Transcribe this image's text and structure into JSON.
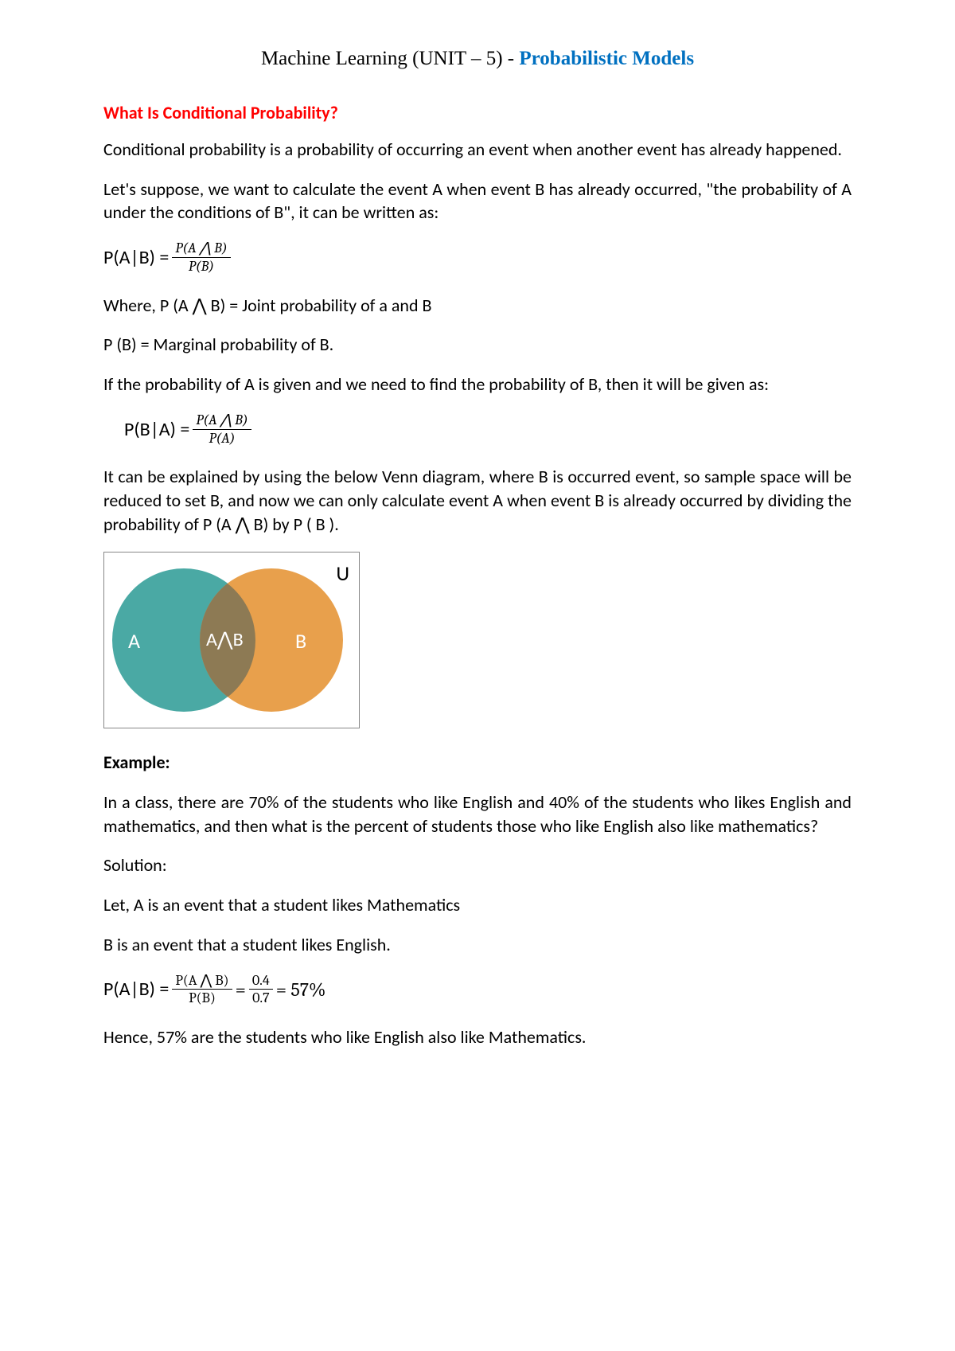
{
  "header": {
    "prefix": "Machine Learning (UNIT – 5) - ",
    "highlight": "Probabilistic Models"
  },
  "section_heading": "What Is Conditional Probability?",
  "para1": "Conditional probability is a probability of occurring an event when another event has already happened.",
  "para2": "Let's suppose, we want to calculate the event A when event B has already occurred, \"the probability of A under the conditions of B\", it can be written as:",
  "formula1": {
    "lhs": "P(A|B) = ",
    "num": "P(A ⋀ B)",
    "den": "P(B)"
  },
  "para3": "Where, P (A ⋀ B) = Joint probability of a and B",
  "para4": "P (B) = Marginal probability of B.",
  "para5": "If the probability of A is given and we need to find the probability of B, then it will be given as:",
  "formula2": {
    "lhs": "P(B|A) = ",
    "num": "P(A ⋀ B)",
    "den": "P(A)"
  },
  "para6": "It can be explained by using the below Venn diagram, where B is occurred event, so sample space will be reduced to set B, and now we can only calculate event A when event B is already occurred by dividing the probability of P (A ⋀ B) by P ( B ).",
  "venn": {
    "labelA": "A",
    "labelAB": "A⋀B",
    "labelB": "B",
    "labelU": "U",
    "colorA": "#4aa9a4",
    "colorB": "#e8a04c",
    "colorIntersection": "#8d7a54",
    "border": "#888888"
  },
  "example_heading": "Example:",
  "example_q": "In a class, there are 70% of the students who like English and 40% of the students who likes English and mathematics, and then what is the percent of students those who like English also like mathematics?",
  "solution_label": "Solution:",
  "sol_line1": "Let, A is an event that a student likes Mathematics",
  "sol_line2": "B is an event that a student likes English.",
  "formula3": {
    "lhs": "P(A|B) = ",
    "num1": "P(A ⋀ B)",
    "den1": "P(B)",
    "eq1": " = ",
    "num2": "0.4",
    "den2": "0.7",
    "eq2": " = 57%"
  },
  "conclusion": "Hence, 57% are the students who like English also like Mathematics."
}
